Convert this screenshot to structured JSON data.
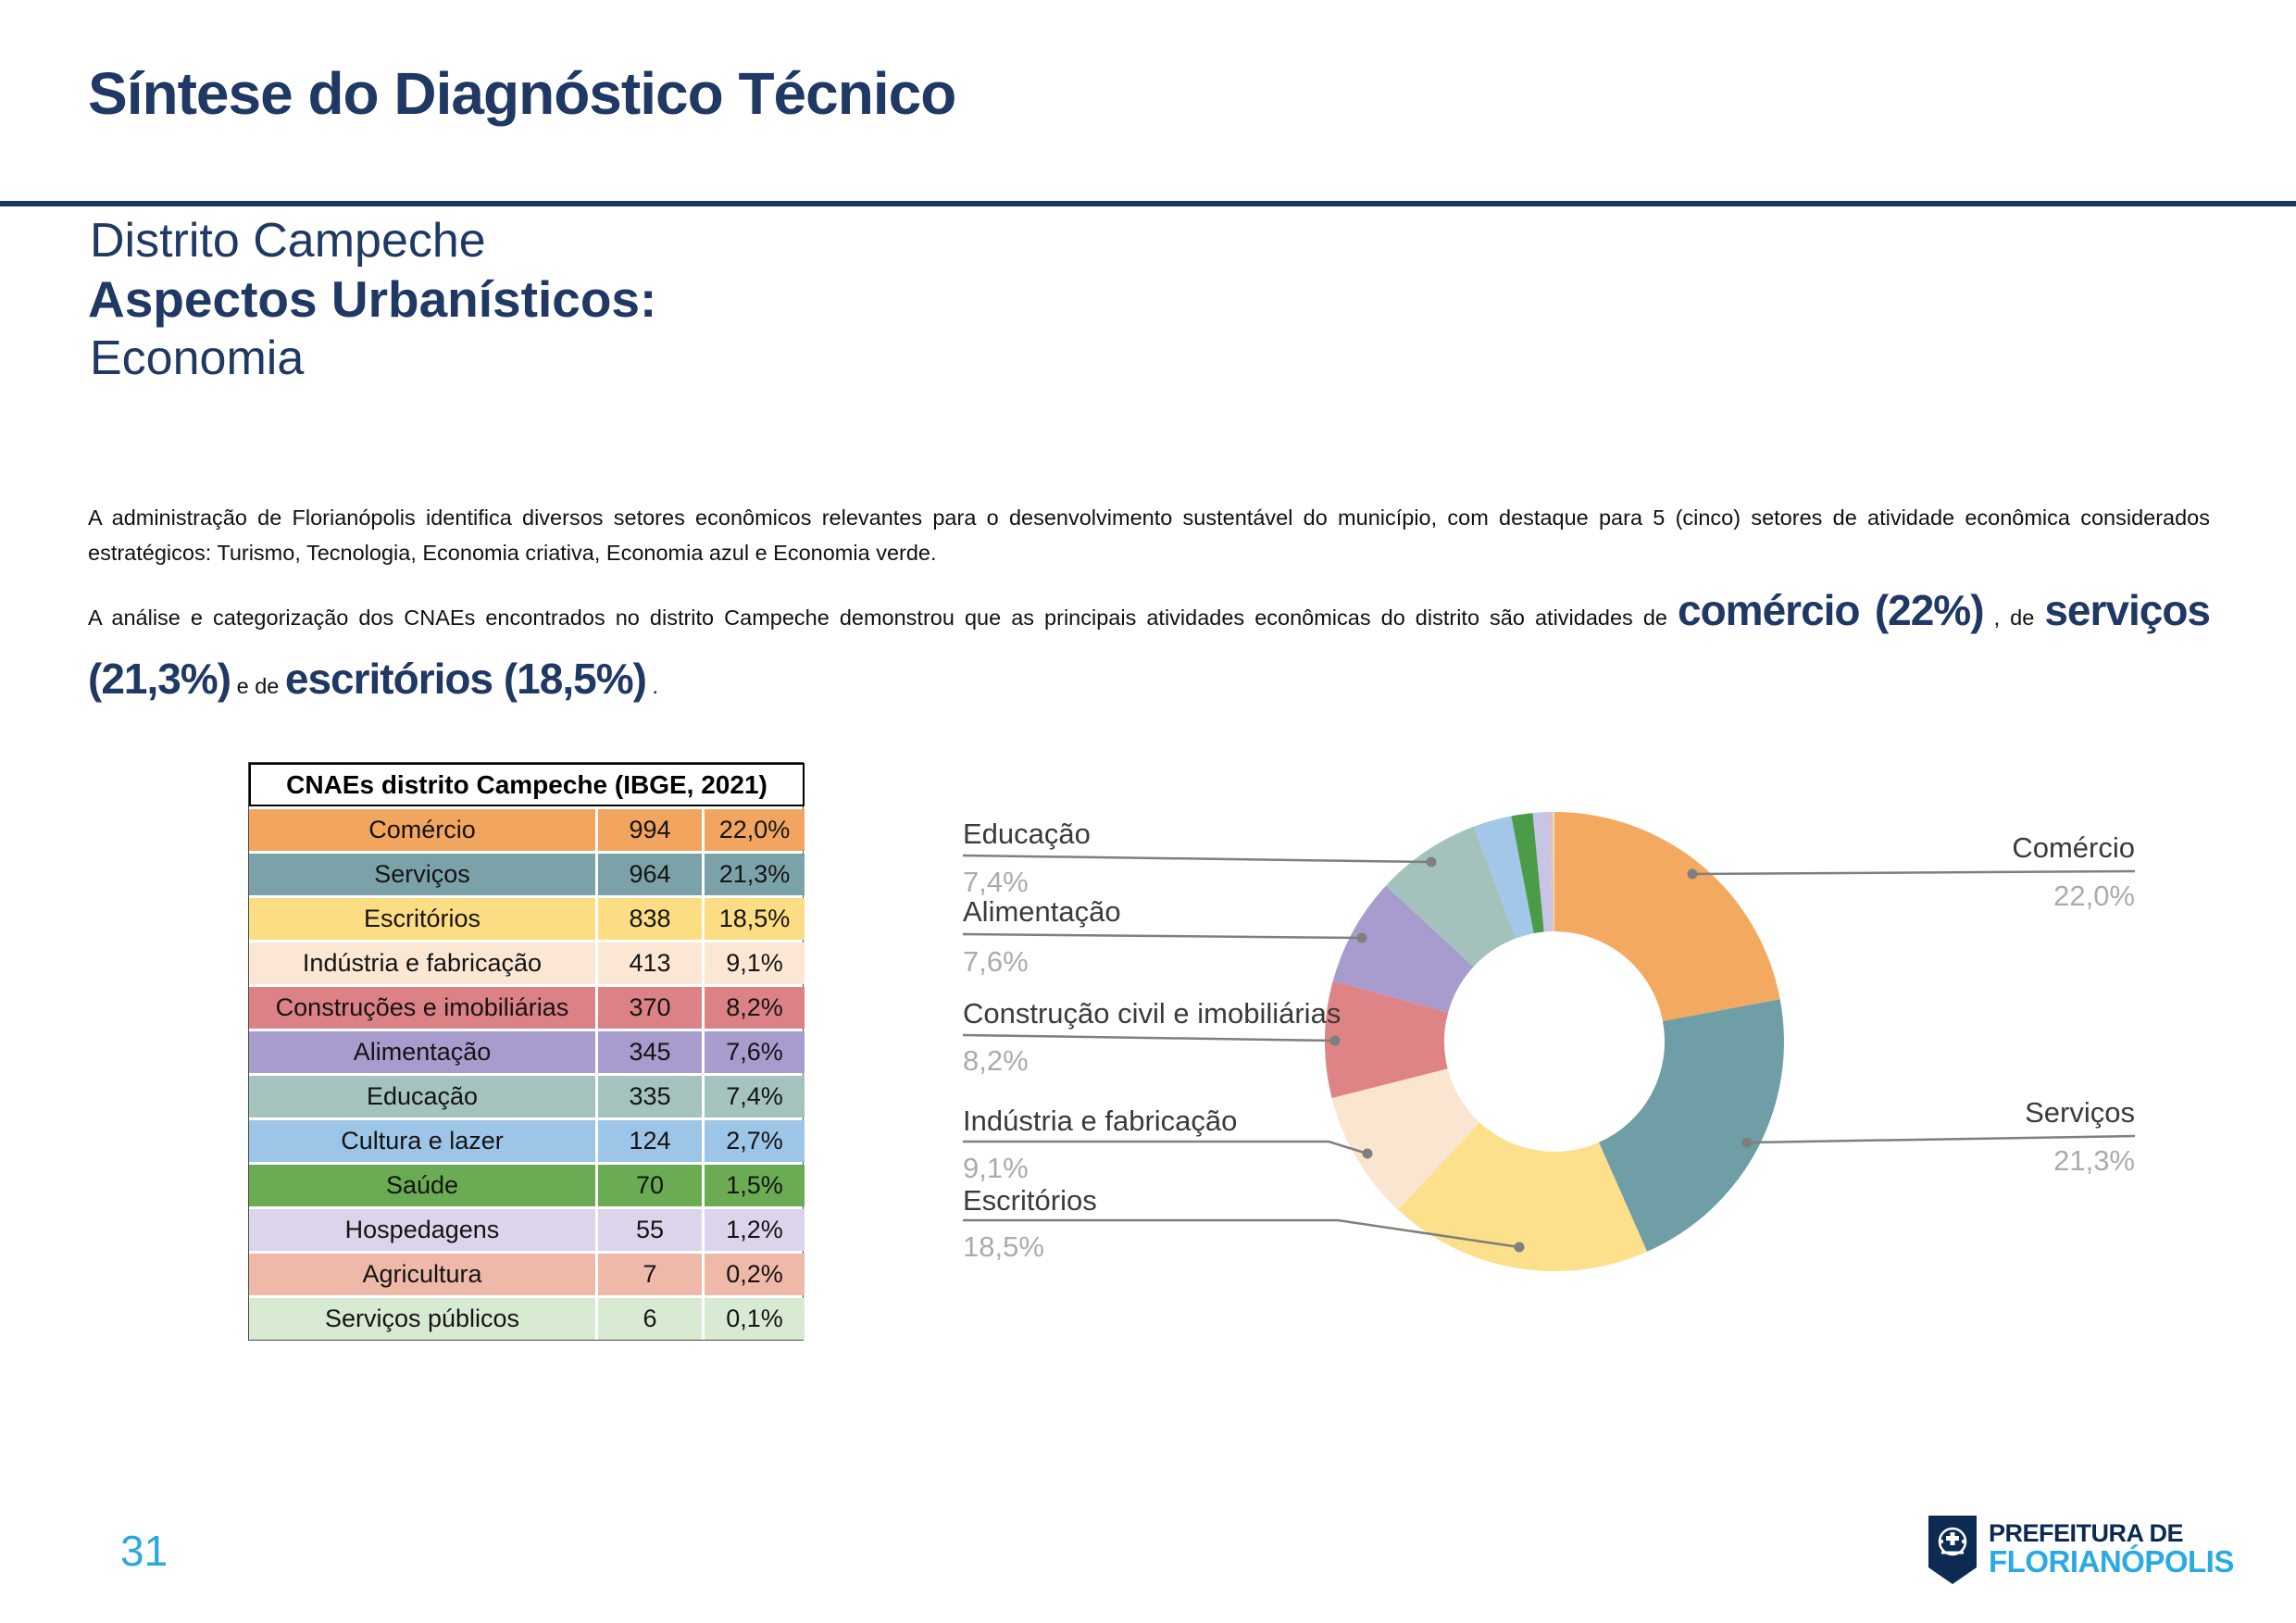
{
  "page": {
    "title": "Síntese do Diagnóstico Técnico",
    "subtitle1": "Distrito Campeche",
    "subtitle2": "Aspectos Urbanísticos:",
    "subtitle3": "Economia"
  },
  "paragraph1": "A administração de Florianópolis identifica diversos setores econômicos relevantes para o desenvolvimento sustentável do município, com destaque para 5 (cinco) setores de atividade econômica considerados estratégicos: Turismo, Tecnologia, Economia criativa, Economia azul e Economia verde.",
  "paragraph2": {
    "seg1": "A análise e categorização dos CNAEs encontrados no distrito Campeche demonstrou que as principais atividades econômicas do distrito são atividades de ",
    "big1": "comércio (22%)",
    "seg2": " , de ",
    "big2": "serviços (21,3%)",
    "seg3": " e de ",
    "big3": "escritórios (18,5%)",
    "seg4": " ."
  },
  "table": {
    "header": "CNAEs distrito Campeche (IBGE, 2021)",
    "rows": [
      {
        "label": "Comércio",
        "value": "994",
        "pct": "22,0%",
        "color": "#F2A55F"
      },
      {
        "label": "Serviços",
        "value": "964",
        "pct": "21,3%",
        "color": "#7BA2A8"
      },
      {
        "label": "Escritórios",
        "value": "838",
        "pct": "18,5%",
        "color": "#FCDD84"
      },
      {
        "label": "Indústria e fabricação",
        "value": "413",
        "pct": "9,1%",
        "color": "#FBE7D3"
      },
      {
        "label": "Construções e imobiliárias",
        "value": "370",
        "pct": "8,2%",
        "color": "#DC8185"
      },
      {
        "label": "Alimentação",
        "value": "345",
        "pct": "7,6%",
        "color": "#A89BCD"
      },
      {
        "label": "Educação",
        "value": "335",
        "pct": "7,4%",
        "color": "#A5C3BE"
      },
      {
        "label": "Cultura e lazer",
        "value": "124",
        "pct": "2,7%",
        "color": "#9DC5E8"
      },
      {
        "label": "Saúde",
        "value": "70",
        "pct": "1,5%",
        "color": "#6AAB53"
      },
      {
        "label": "Hospedagens",
        "value": "55",
        "pct": "1,2%",
        "color": "#DBD4EA"
      },
      {
        "label": "Agricultura",
        "value": "7",
        "pct": "0,2%",
        "color": "#EFB9A9"
      },
      {
        "label": "Serviços públicos",
        "value": "6",
        "pct": "0,1%",
        "color": "#D9EAD2"
      }
    ]
  },
  "chart_data": {
    "type": "pie",
    "donut": true,
    "start_angle": "top",
    "direction": "clockwise",
    "slices": [
      {
        "label": "Comércio",
        "value": 994,
        "pct": 22.0,
        "pct_label": "22,0%",
        "color": "#F4A960",
        "callout": "right"
      },
      {
        "label": "Serviços",
        "value": 964,
        "pct": 21.3,
        "pct_label": "21,3%",
        "color": "#6F9EA6",
        "callout": "right"
      },
      {
        "label": "Escritórios",
        "value": 838,
        "pct": 18.5,
        "pct_label": "18,5%",
        "color": "#FCE08C",
        "callout": "left"
      },
      {
        "label": "Indústria e fabricação",
        "value": 413,
        "pct": 9.1,
        "pct_label": "9,1%",
        "color": "#FAE5D0",
        "callout": "left"
      },
      {
        "label": "Construção civil e imobiliárias",
        "value": 370,
        "pct": 8.2,
        "pct_label": "8,2%",
        "color": "#DE8487",
        "callout": "left"
      },
      {
        "label": "Alimentação",
        "value": 345,
        "pct": 7.6,
        "pct_label": "7,6%",
        "color": "#A89CCE",
        "callout": "left"
      },
      {
        "label": "Educação",
        "value": 335,
        "pct": 7.4,
        "pct_label": "7,4%",
        "color": "#A3C2BC",
        "callout": "left"
      },
      {
        "label": "Cultura e lazer",
        "value": 124,
        "pct": 2.7,
        "pct_label": "2,7%",
        "color": "#A3C7E8",
        "callout": null
      },
      {
        "label": "Saúde",
        "value": 70,
        "pct": 1.5,
        "pct_label": "1,5%",
        "color": "#4C9B47",
        "callout": null
      },
      {
        "label": "Hospedagens",
        "value": 55,
        "pct": 1.2,
        "pct_label": "1,2%",
        "color": "#C8C4E6",
        "callout": null
      },
      {
        "label": "Agricultura",
        "value": 7,
        "pct": 0.2,
        "pct_label": "0,2%",
        "color": "#EFB9A9",
        "callout": null
      },
      {
        "label": "Serviços públicos",
        "value": 6,
        "pct": 0.1,
        "pct_label": "0,1%",
        "color": "#D9EAD2",
        "callout": null
      }
    ]
  },
  "footer": {
    "page_number": "31",
    "logo_text_top": "PREFEITURA DE",
    "logo_text_bottom": "FLORIANÓPOLIS"
  },
  "colors": {
    "navy": "#1F3864",
    "rule": "#17375D",
    "accent_blue": "#29A9E0",
    "leader_gray": "#7F7F7F",
    "label_gray": "#ABABAB"
  }
}
